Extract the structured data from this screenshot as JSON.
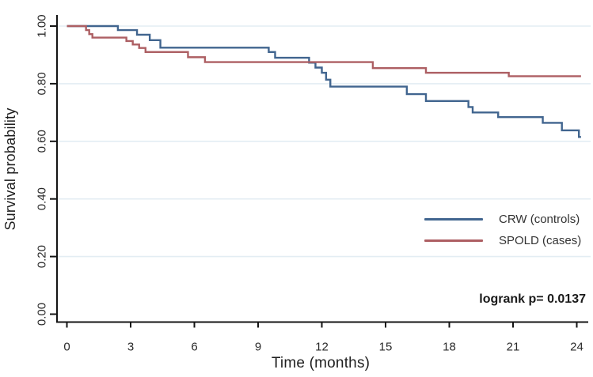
{
  "figure": {
    "y_axis_title": "Survival probability",
    "x_axis_title": "Time (months)",
    "annotation": "logrank p= 0.0137"
  },
  "legend": {
    "items": [
      {
        "label": "CRW (controls)",
        "color": "#41658f"
      },
      {
        "label": "SPOLD (cases)",
        "color": "#ad5f63"
      }
    ]
  },
  "colors": {
    "crw_line": "#41658f",
    "spold_line": "#ad5f63",
    "gridline": "#e3edf3",
    "axis": "#141414",
    "tick_text": "#2b2b2b"
  },
  "chart_data": {
    "type": "line",
    "subtype": "kaplan-meier-step",
    "title": "",
    "xlabel": "Time (months)",
    "ylabel": "Survival probability",
    "xlim": [
      0,
      24.5
    ],
    "ylim": [
      0,
      1.0
    ],
    "x_ticks": [
      "0",
      "3",
      "6",
      "9",
      "12",
      "15",
      "18",
      "21",
      "24"
    ],
    "x_tick_values": [
      0,
      3,
      6,
      9,
      12,
      15,
      18,
      21,
      24
    ],
    "y_ticks": [
      "0.00",
      "0.20",
      "0.40",
      "0.60",
      "0.80",
      "1.00"
    ],
    "y_tick_values": [
      0,
      0.2,
      0.4,
      0.6,
      0.8,
      1.0
    ],
    "grid": "horizontal",
    "legend_position": "inside-right",
    "annotation": "logrank p= 0.0137",
    "series": [
      {
        "name": "CRW (controls)",
        "color": "#41658f",
        "end_t": 24.2,
        "steps": [
          [
            0,
            1.0
          ],
          [
            2.4,
            0.986
          ],
          [
            3.3,
            0.97
          ],
          [
            3.9,
            0.951
          ],
          [
            4.4,
            0.925
          ],
          [
            9.5,
            0.91
          ],
          [
            9.8,
            0.89
          ],
          [
            11.4,
            0.873
          ],
          [
            11.7,
            0.856
          ],
          [
            12.0,
            0.838
          ],
          [
            12.2,
            0.814
          ],
          [
            12.4,
            0.79
          ],
          [
            16.0,
            0.764
          ],
          [
            16.9,
            0.74
          ],
          [
            18.9,
            0.719
          ],
          [
            19.1,
            0.7
          ],
          [
            20.3,
            0.684
          ],
          [
            22.4,
            0.664
          ],
          [
            23.3,
            0.638
          ],
          [
            24.1,
            0.615
          ]
        ]
      },
      {
        "name": "SPOLD (cases)",
        "color": "#ad5f63",
        "end_t": 24.2,
        "steps": [
          [
            0,
            1.0
          ],
          [
            0.9,
            0.986
          ],
          [
            1.05,
            0.972
          ],
          [
            1.2,
            0.96
          ],
          [
            2.8,
            0.948
          ],
          [
            3.1,
            0.936
          ],
          [
            3.4,
            0.924
          ],
          [
            3.7,
            0.91
          ],
          [
            5.7,
            0.892
          ],
          [
            6.5,
            0.875
          ],
          [
            14.4,
            0.854
          ],
          [
            16.9,
            0.838
          ],
          [
            20.8,
            0.826
          ]
        ]
      }
    ]
  }
}
